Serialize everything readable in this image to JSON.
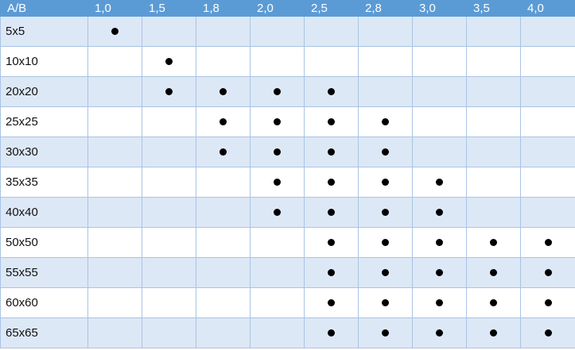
{
  "table": {
    "corner_label": "A/B",
    "columns": [
      "1,0",
      "1,5",
      "1,8",
      "2,0",
      "2,5",
      "2,8",
      "3,0",
      "3,5",
      "4,0"
    ],
    "rows": [
      {
        "label": "5x5",
        "marks": [
          true,
          false,
          false,
          false,
          false,
          false,
          false,
          false,
          false
        ]
      },
      {
        "label": "10x10",
        "marks": [
          false,
          true,
          false,
          false,
          false,
          false,
          false,
          false,
          false
        ]
      },
      {
        "label": "20x20",
        "marks": [
          false,
          true,
          true,
          true,
          true,
          false,
          false,
          false,
          false
        ]
      },
      {
        "label": "25x25",
        "marks": [
          false,
          false,
          true,
          true,
          true,
          true,
          false,
          false,
          false
        ]
      },
      {
        "label": "30x30",
        "marks": [
          false,
          false,
          true,
          true,
          true,
          true,
          false,
          false,
          false
        ]
      },
      {
        "label": "35x35",
        "marks": [
          false,
          false,
          false,
          true,
          true,
          true,
          true,
          false,
          false
        ]
      },
      {
        "label": "40x40",
        "marks": [
          false,
          false,
          false,
          true,
          true,
          true,
          true,
          false,
          false
        ]
      },
      {
        "label": "50x50",
        "marks": [
          false,
          false,
          false,
          false,
          true,
          true,
          true,
          true,
          true
        ]
      },
      {
        "label": "55x55",
        "marks": [
          false,
          false,
          false,
          false,
          true,
          true,
          true,
          true,
          true
        ]
      },
      {
        "label": "60x60",
        "marks": [
          false,
          false,
          false,
          false,
          true,
          true,
          true,
          true,
          true
        ]
      },
      {
        "label": "65x65",
        "marks": [
          false,
          false,
          false,
          false,
          true,
          true,
          true,
          true,
          true
        ]
      }
    ],
    "colors": {
      "header_bg": "#5b9bd5",
      "band_bg": "#dde8f6",
      "border": "#a9c4e4",
      "dot": "#000000"
    },
    "icons": {
      "mark": "filled-circle"
    }
  }
}
